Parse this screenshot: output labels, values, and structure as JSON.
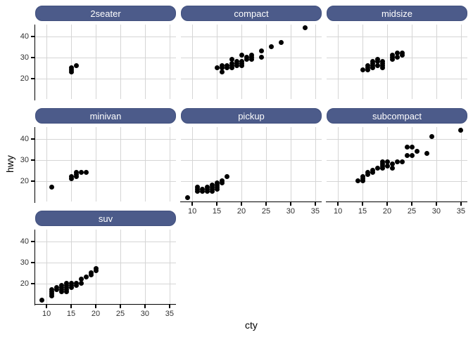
{
  "chart_data": {
    "type": "scatter",
    "title": "",
    "xlabel": "cty",
    "ylabel": "hwy",
    "x_ticks": [
      10,
      15,
      20,
      25,
      30,
      35
    ],
    "y_ticks": [
      20,
      30,
      40
    ],
    "x_range": [
      7.7,
      36.3
    ],
    "y_range": [
      10.4,
      45.6
    ],
    "grid": "major gridlines only, light gray on white",
    "legend": "none",
    "point_style": "solid black dots",
    "facet_layout": "wrap, 3 columns, axes on outer left and bottom panels only",
    "facets": [
      {
        "label": "2seater",
        "points": [
          [
            15,
            23
          ],
          [
            15,
            24
          ],
          [
            15,
            25
          ],
          [
            16,
            26
          ]
        ]
      },
      {
        "label": "compact",
        "points": [
          [
            15,
            25
          ],
          [
            16,
            23
          ],
          [
            16,
            25
          ],
          [
            16,
            26
          ],
          [
            17,
            25
          ],
          [
            17,
            26
          ],
          [
            18,
            25
          ],
          [
            18,
            26
          ],
          [
            18,
            27
          ],
          [
            18,
            29
          ],
          [
            19,
            26
          ],
          [
            19,
            27
          ],
          [
            19,
            28
          ],
          [
            20,
            26
          ],
          [
            20,
            27
          ],
          [
            20,
            28
          ],
          [
            20,
            31
          ],
          [
            21,
            29
          ],
          [
            21,
            30
          ],
          [
            22,
            29
          ],
          [
            22,
            30
          ],
          [
            22,
            31
          ],
          [
            24,
            30
          ],
          [
            24,
            33
          ],
          [
            26,
            35
          ],
          [
            28,
            37
          ],
          [
            33,
            44
          ]
        ]
      },
      {
        "label": "midsize",
        "points": [
          [
            15,
            24
          ],
          [
            16,
            24
          ],
          [
            16,
            25
          ],
          [
            16,
            26
          ],
          [
            17,
            25
          ],
          [
            17,
            26
          ],
          [
            17,
            27
          ],
          [
            17,
            28
          ],
          [
            18,
            26
          ],
          [
            18,
            28
          ],
          [
            18,
            29
          ],
          [
            19,
            25
          ],
          [
            19,
            26
          ],
          [
            19,
            27
          ],
          [
            19,
            28
          ],
          [
            21,
            29
          ],
          [
            21,
            30
          ],
          [
            21,
            31
          ],
          [
            22,
            30
          ],
          [
            22,
            32
          ],
          [
            23,
            31
          ],
          [
            23,
            32
          ]
        ]
      },
      {
        "label": "minivan",
        "points": [
          [
            11,
            17
          ],
          [
            15,
            21
          ],
          [
            15,
            22
          ],
          [
            16,
            22
          ],
          [
            16,
            23
          ],
          [
            16,
            24
          ],
          [
            17,
            24
          ],
          [
            18,
            24
          ]
        ]
      },
      {
        "label": "pickup",
        "points": [
          [
            9,
            12
          ],
          [
            11,
            15
          ],
          [
            11,
            16
          ],
          [
            11,
            17
          ],
          [
            12,
            15
          ],
          [
            12,
            16
          ],
          [
            13,
            15
          ],
          [
            13,
            16
          ],
          [
            13,
            17
          ],
          [
            14,
            15
          ],
          [
            14,
            16
          ],
          [
            14,
            17
          ],
          [
            14,
            18
          ],
          [
            15,
            16
          ],
          [
            15,
            17
          ],
          [
            15,
            18
          ],
          [
            15,
            19
          ],
          [
            16,
            19
          ],
          [
            16,
            20
          ],
          [
            17,
            22
          ]
        ]
      },
      {
        "label": "subcompact",
        "points": [
          [
            14,
            20
          ],
          [
            15,
            20
          ],
          [
            15,
            21
          ],
          [
            15,
            22
          ],
          [
            16,
            23
          ],
          [
            16,
            24
          ],
          [
            17,
            24
          ],
          [
            17,
            25
          ],
          [
            18,
            26
          ],
          [
            19,
            26
          ],
          [
            19,
            27
          ],
          [
            19,
            28
          ],
          [
            19,
            29
          ],
          [
            20,
            27
          ],
          [
            20,
            29
          ],
          [
            21,
            26
          ],
          [
            21,
            28
          ],
          [
            22,
            29
          ],
          [
            23,
            29
          ],
          [
            24,
            32
          ],
          [
            24,
            36
          ],
          [
            25,
            32
          ],
          [
            25,
            36
          ],
          [
            26,
            34
          ],
          [
            28,
            33
          ],
          [
            29,
            41
          ],
          [
            35,
            44
          ]
        ]
      },
      {
        "label": "suv",
        "points": [
          [
            9,
            12
          ],
          [
            11,
            14
          ],
          [
            11,
            15
          ],
          [
            11,
            16
          ],
          [
            11,
            17
          ],
          [
            12,
            17
          ],
          [
            12,
            18
          ],
          [
            13,
            16
          ],
          [
            13,
            17
          ],
          [
            13,
            18
          ],
          [
            13,
            19
          ],
          [
            14,
            16
          ],
          [
            14,
            17
          ],
          [
            14,
            18
          ],
          [
            14,
            19
          ],
          [
            14,
            20
          ],
          [
            15,
            18
          ],
          [
            15,
            19
          ],
          [
            15,
            20
          ],
          [
            16,
            19
          ],
          [
            16,
            20
          ],
          [
            17,
            20
          ],
          [
            17,
            22
          ],
          [
            18,
            23
          ],
          [
            19,
            24
          ],
          [
            19,
            25
          ],
          [
            20,
            26
          ],
          [
            20,
            27
          ]
        ]
      }
    ],
    "colors": {
      "strip_fill": "#4c5b8a",
      "strip_border": "#41507e",
      "strip_text": "#ffffff",
      "grid": "#d5d5d5",
      "point": "#000000",
      "axis_line": "#000000",
      "tick_text": "#303030",
      "background": "#ffffff"
    }
  }
}
